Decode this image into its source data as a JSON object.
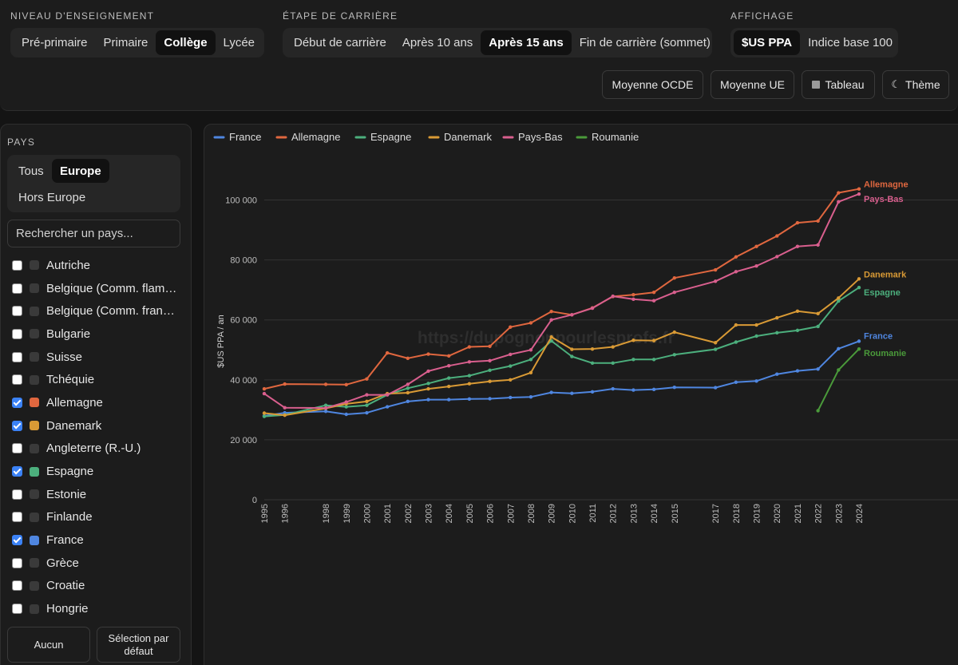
{
  "header": {
    "groups": [
      {
        "title": "NIVEAU D'ENSEIGNEMENT",
        "options": [
          "Pré-primaire",
          "Primaire",
          "Collège",
          "Lycée"
        ],
        "active": 2
      },
      {
        "title": "ÉTAPE DE CARRIÈRE",
        "options": [
          "Début de carrière",
          "Après 10 ans",
          "Après 15 ans",
          "Fin de carrière (sommet)"
        ],
        "active": 2
      },
      {
        "title": "AFFICHAGE",
        "options": [
          "$US PPA",
          "Indice base 100"
        ],
        "active": 0
      }
    ],
    "tools": {
      "oecd_avg": "Moyenne OCDE",
      "eu_avg": "Moyenne UE",
      "table": "Tableau",
      "theme": "Thème"
    }
  },
  "sidebar": {
    "title": "PAYS",
    "region_tabs": [
      "Tous",
      "Europe",
      "Hors Europe"
    ],
    "region_active": 1,
    "search_placeholder": "Rechercher un pays...",
    "countries": [
      {
        "name": "Autriche",
        "checked": false,
        "color": "#3a3a3a"
      },
      {
        "name": "Belgique (Comm. flamande)",
        "checked": false,
        "color": "#3a3a3a"
      },
      {
        "name": "Belgique (Comm. française)",
        "checked": false,
        "color": "#3a3a3a"
      },
      {
        "name": "Bulgarie",
        "checked": false,
        "color": "#3a3a3a"
      },
      {
        "name": "Suisse",
        "checked": false,
        "color": "#3a3a3a"
      },
      {
        "name": "Tchéquie",
        "checked": false,
        "color": "#3a3a3a"
      },
      {
        "name": "Allemagne",
        "checked": true,
        "color": "#e0673f"
      },
      {
        "name": "Danemark",
        "checked": true,
        "color": "#d99a35"
      },
      {
        "name": "Angleterre (R.-U.)",
        "checked": false,
        "color": "#3a3a3a"
      },
      {
        "name": "Espagne",
        "checked": true,
        "color": "#4caf7d"
      },
      {
        "name": "Estonie",
        "checked": false,
        "color": "#3a3a3a"
      },
      {
        "name": "Finlande",
        "checked": false,
        "color": "#3a3a3a"
      },
      {
        "name": "France",
        "checked": true,
        "color": "#4f86e0"
      },
      {
        "name": "Grèce",
        "checked": false,
        "color": "#3a3a3a"
      },
      {
        "name": "Croatie",
        "checked": false,
        "color": "#3a3a3a"
      },
      {
        "name": "Hongrie",
        "checked": false,
        "color": "#3a3a3a"
      }
    ],
    "btn_none": "Aucun",
    "btn_default": "Sélection par défaut"
  },
  "chart_data": {
    "type": "line",
    "ylabel": "$US PPA / an",
    "ylim": [
      0,
      110000
    ],
    "yticks": [
      0,
      20000,
      40000,
      60000,
      80000,
      100000
    ],
    "ytick_labels": [
      "0",
      "20 000",
      "40 000",
      "60 000",
      "80 000",
      "100 000"
    ],
    "legend_position": "top-left",
    "grid": true,
    "watermark": "https://dupognonpourlesprofs.fr",
    "x": [
      1995,
      1996,
      1998,
      1999,
      2000,
      2001,
      2002,
      2003,
      2004,
      2005,
      2006,
      2007,
      2008,
      2009,
      2010,
      2011,
      2012,
      2013,
      2014,
      2015,
      2017,
      2018,
      2019,
      2020,
      2021,
      2022,
      2023,
      2024
    ],
    "series": [
      {
        "name": "France",
        "color": "#4f86e0",
        "values": [
          28000,
          29000,
          29500,
          28500,
          29000,
          31000,
          32800,
          33400,
          33400,
          33600,
          33700,
          34100,
          34300,
          35800,
          35500,
          36000,
          37000,
          36600,
          36800,
          37500,
          37400,
          39200,
          39600,
          41900,
          43000,
          43600,
          50400,
          52900
        ]
      },
      {
        "name": "Allemagne",
        "color": "#e0673f",
        "values": [
          37000,
          38600,
          38500,
          38400,
          40300,
          49000,
          47200,
          48600,
          48000,
          51000,
          51200,
          57600,
          59000,
          62800,
          61700,
          64000,
          67800,
          68400,
          69200,
          74000,
          76700,
          81000,
          84500,
          88000,
          92400,
          93000,
          102400,
          103700
        ]
      },
      {
        "name": "Espagne",
        "color": "#4caf7d",
        "values": [
          27800,
          28300,
          31500,
          31000,
          31500,
          35000,
          37200,
          38800,
          40600,
          41400,
          43200,
          44600,
          46800,
          53000,
          47800,
          45600,
          45600,
          46800,
          46800,
          48400,
          50200,
          52600,
          54600,
          55700,
          56500,
          57800,
          66300,
          70800
        ]
      },
      {
        "name": "Danemark",
        "color": "#d99a35",
        "values": [
          28900,
          28200,
          30500,
          32000,
          32800,
          35400,
          35700,
          37000,
          37800,
          38700,
          39500,
          40000,
          42400,
          54300,
          50200,
          50300,
          51000,
          53200,
          53100,
          55900,
          52400,
          58300,
          58300,
          60700,
          62900,
          62100,
          67300,
          73700
        ]
      },
      {
        "name": "Pays-Bas",
        "color": "#d95f8e",
        "values": [
          35400,
          30700,
          30600,
          32600,
          35000,
          35000,
          38500,
          42900,
          44700,
          46000,
          46400,
          48500,
          50000,
          60000,
          61700,
          63900,
          67900,
          66900,
          66400,
          69200,
          72900,
          76100,
          78000,
          81100,
          84500,
          85000,
          99400,
          102000
        ]
      },
      {
        "name": "Roumanie",
        "color": "#4a9a3a",
        "values": [
          null,
          null,
          null,
          null,
          null,
          null,
          null,
          null,
          null,
          null,
          null,
          null,
          null,
          null,
          null,
          null,
          null,
          null,
          null,
          null,
          null,
          null,
          null,
          null,
          null,
          29700,
          43300,
          50300
        ]
      }
    ]
  }
}
